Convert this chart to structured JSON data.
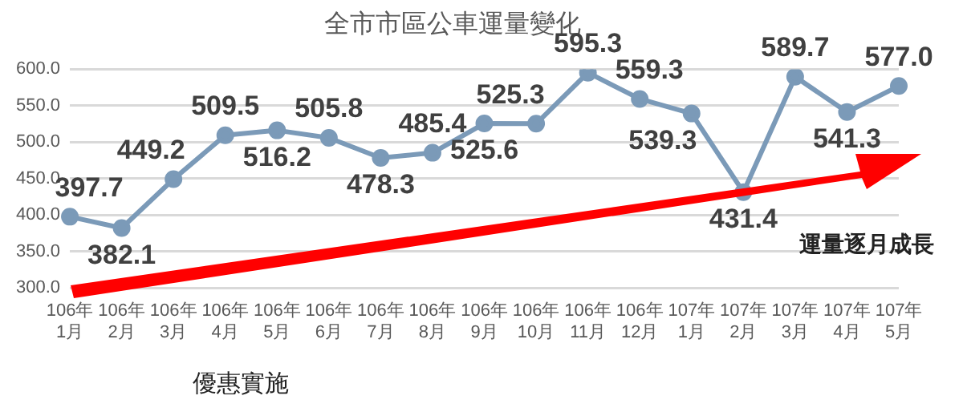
{
  "chart_data": {
    "type": "line",
    "title": "全市市區公車運量變化",
    "categories": [
      "106年\n1月",
      "106年\n2月",
      "106年\n3月",
      "106年\n4月",
      "106年\n5月",
      "106年\n6月",
      "106年\n7月",
      "106年\n8月",
      "106年\n9月",
      "106年\n10月",
      "106年\n11月",
      "106年\n12月",
      "107年\n1月",
      "107年\n2月",
      "107年\n3月",
      "107年\n4月",
      "107年\n5月"
    ],
    "series": [
      {
        "color": "#7b9ab8",
        "values": [
          397.7,
          382.1,
          449.2,
          509.5,
          516.2,
          505.8,
          478.3,
          485.4,
          525.6,
          525.3,
          595.3,
          559.3,
          539.3,
          431.4,
          589.7,
          541.3,
          577.0
        ]
      }
    ],
    "ylim": [
      300,
      600
    ],
    "yticks": [
      {
        "value": 300,
        "label": "300.0"
      },
      {
        "value": 350,
        "label": "350.0"
      },
      {
        "value": 400,
        "label": "400.0"
      },
      {
        "value": 450,
        "label": "450.0"
      },
      {
        "value": 500,
        "label": "500.0"
      },
      {
        "value": 550,
        "label": "550.0"
      },
      {
        "value": 600,
        "label": "600.0"
      }
    ],
    "value_labels": [
      "397.7",
      "382.1",
      "449.2",
      "509.5",
      "516.2",
      "505.8",
      "478.3",
      "485.4",
      "525.6",
      "525.3",
      "595.3",
      "559.3",
      "539.3",
      "431.4",
      "589.7",
      "541.3",
      "577.0"
    ],
    "grid": "y",
    "legend": false,
    "marker": "circle",
    "line_style": "solid",
    "annotations": [
      "優惠實施",
      "運量逐月成長"
    ]
  }
}
